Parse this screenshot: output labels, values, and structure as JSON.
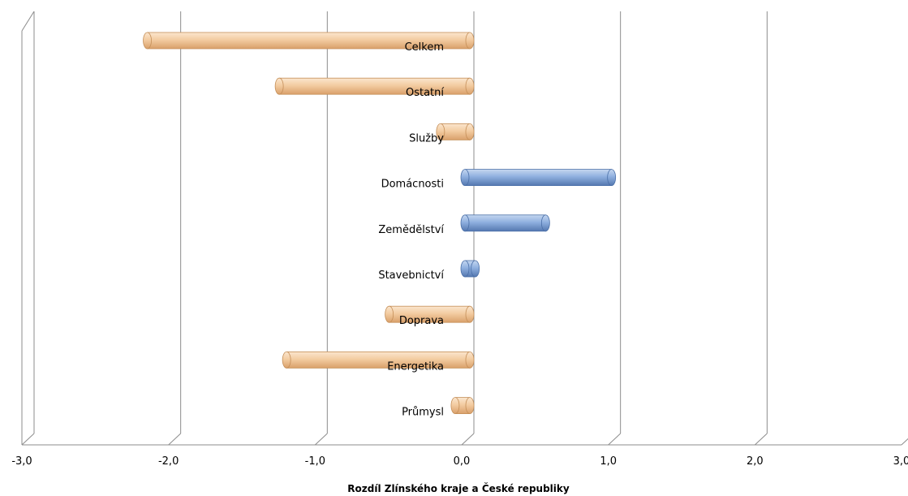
{
  "chart_data": {
    "type": "bar",
    "orientation": "horizontal",
    "categories": [
      "Celkem",
      "Ostatní",
      "Služby",
      "Domácnosti",
      "Zemědělství",
      "Stavebnictví",
      "Doprava",
      "Energetika",
      "Průmysl"
    ],
    "values": [
      -2.2,
      -1.3,
      -0.2,
      1.0,
      0.55,
      0.07,
      -0.55,
      -1.25,
      -0.1
    ],
    "xlim": [
      -3.0,
      3.0
    ],
    "x_ticks": [
      "-3,0",
      "-2,0",
      "-1,0",
      "0,0",
      "1,0",
      "2,0",
      "3,0"
    ],
    "xlabel": "Rozdíl Zlínského kraje a České republiky",
    "ylabel": "",
    "title": "",
    "grid": true,
    "colors": {
      "negative": "#f2c89a",
      "negative_edge": "#c58f58",
      "positive": "#8aaee0",
      "positive_edge": "#4a6fa8",
      "grid": "#8c8c8c"
    }
  }
}
